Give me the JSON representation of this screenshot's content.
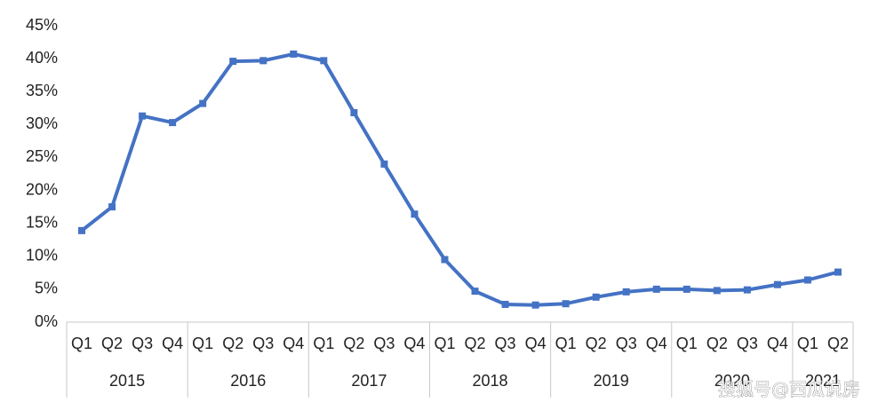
{
  "chart_data": {
    "type": "line",
    "category_groups": [
      {
        "label": "2015",
        "categories": [
          "Q1",
          "Q2",
          "Q3",
          "Q4"
        ]
      },
      {
        "label": "2016",
        "categories": [
          "Q1",
          "Q2",
          "Q3",
          "Q4"
        ]
      },
      {
        "label": "2017",
        "categories": [
          "Q1",
          "Q2",
          "Q3",
          "Q4"
        ]
      },
      {
        "label": "2018",
        "categories": [
          "Q1",
          "Q2",
          "Q3",
          "Q4"
        ]
      },
      {
        "label": "2019",
        "categories": [
          "Q1",
          "Q2",
          "Q3",
          "Q4"
        ]
      },
      {
        "label": "2020",
        "categories": [
          "Q1",
          "Q2",
          "Q3",
          "Q4"
        ]
      },
      {
        "label": "2021",
        "categories": [
          "Q1",
          "Q2"
        ]
      }
    ],
    "series": [
      {
        "color": "#4472c4",
        "values": [
          13.9,
          17.5,
          31.3,
          30.3,
          33.2,
          39.6,
          39.7,
          40.7,
          39.7,
          31.8,
          24.0,
          16.4,
          9.5,
          4.7,
          2.7,
          2.6,
          2.8,
          3.8,
          4.6,
          5.0,
          5.0,
          4.8,
          4.9,
          5.7,
          6.4,
          7.6
        ]
      }
    ],
    "ylim": [
      0,
      45
    ],
    "yticks": [
      {
        "value": 0,
        "label": "0%"
      },
      {
        "value": 5,
        "label": "5%"
      },
      {
        "value": 10,
        "label": "10%"
      },
      {
        "value": 15,
        "label": "15%"
      },
      {
        "value": 20,
        "label": "20%"
      },
      {
        "value": 25,
        "label": "25%"
      },
      {
        "value": 30,
        "label": "30%"
      },
      {
        "value": 35,
        "label": "35%"
      },
      {
        "value": 40,
        "label": "40%"
      },
      {
        "value": 45,
        "label": "45%"
      }
    ],
    "grid": false,
    "watermark": "搜狐号@西瓜说房"
  }
}
